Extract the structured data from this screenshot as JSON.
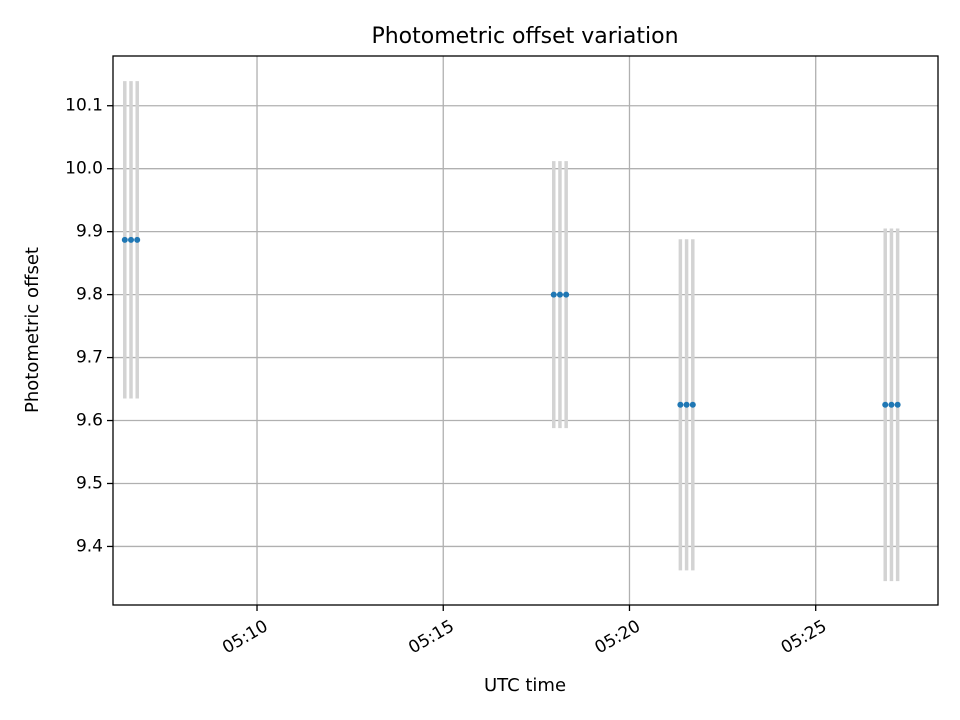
{
  "chart_data": {
    "type": "scatter",
    "title": "Photometric offset variation",
    "xlabel": "UTC time",
    "ylabel": "Photometric offset",
    "x_axis": "time",
    "xlim": [
      "05:06:08",
      "05:28:17"
    ],
    "ylim": [
      9.307,
      10.179
    ],
    "x_ticks": [
      "05:10",
      "05:15",
      "05:20",
      "05:25"
    ],
    "y_ticks": [
      9.4,
      9.5,
      9.6,
      9.7,
      9.8,
      9.9,
      10.0,
      10.1
    ],
    "grid": true,
    "marker_color": "#1f77b4",
    "errorbar_color": "#d3d3d3",
    "series": [
      {
        "x": [
          "05:06:27",
          "05:06:37",
          "05:06:47",
          "05:17:58",
          "05:18:08",
          "05:18:18",
          "05:21:22",
          "05:21:32",
          "05:21:42",
          "05:26:52",
          "05:27:02",
          "05:27:12"
        ],
        "y": [
          9.887,
          9.887,
          9.887,
          9.8,
          9.8,
          9.8,
          9.625,
          9.625,
          9.625,
          9.625,
          9.625,
          9.625
        ],
        "yerr": [
          0.252,
          0.252,
          0.252,
          0.212,
          0.212,
          0.212,
          0.263,
          0.263,
          0.263,
          0.28,
          0.28,
          0.28
        ]
      }
    ]
  }
}
